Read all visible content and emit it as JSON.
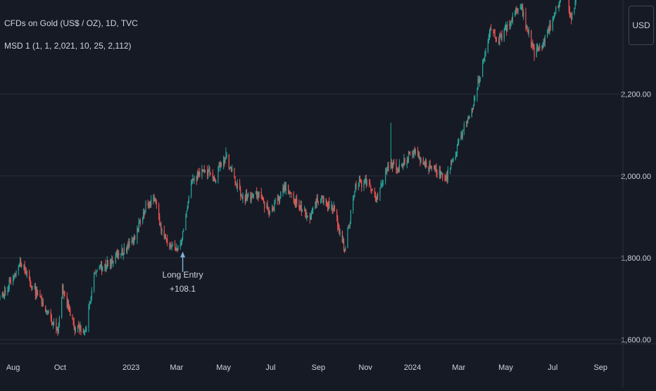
{
  "header": {
    "symbol_title": "CFDs on Gold (US$ / OZ), 1D, TVC",
    "indicator": "MSD 1 (1, 1, 2,021, 10, 25, 2,112)",
    "currency": "USD"
  },
  "colors": {
    "background": "#161a25",
    "grid": "#2a2e39",
    "up": "#26a69a",
    "down": "#ef5350",
    "text": "#d1d4dc",
    "entry_arrow": "#7fb3d5"
  },
  "chart_data": {
    "type": "candlestick",
    "title": "CFDs on Gold (US$ / OZ), 1D, TVC",
    "ylabel": "USD",
    "ylim": [
      1590,
      2430
    ],
    "y_ticks": [
      {
        "value": 1600,
        "label": "1,600.00"
      },
      {
        "value": 1800,
        "label": "1,800.00"
      },
      {
        "value": 2000,
        "label": "2,000.00"
      },
      {
        "value": 2200,
        "label": "2,200.00"
      }
    ],
    "x_range": [
      "2022-07-15",
      "2024-09-30"
    ],
    "x_ticks": [
      {
        "date": "2022-08-01",
        "label": "Aug"
      },
      {
        "date": "2022-10-01",
        "label": "Oct"
      },
      {
        "date": "2023-01-01",
        "label": "2023"
      },
      {
        "date": "2023-03-01",
        "label": "Mar"
      },
      {
        "date": "2023-05-01",
        "label": "May"
      },
      {
        "date": "2023-07-01",
        "label": "Jul"
      },
      {
        "date": "2023-09-01",
        "label": "Sep"
      },
      {
        "date": "2023-11-01",
        "label": "Nov"
      },
      {
        "date": "2024-01-01",
        "label": "2024"
      },
      {
        "date": "2024-03-01",
        "label": "Mar"
      },
      {
        "date": "2024-05-01",
        "label": "May"
      },
      {
        "date": "2024-07-01",
        "label": "Jul"
      },
      {
        "date": "2024-09-01",
        "label": "Sep"
      }
    ],
    "price_path": [
      [
        "2022-07-15",
        1705
      ],
      [
        "2022-07-25",
        1730
      ],
      [
        "2022-08-10",
        1790
      ],
      [
        "2022-08-20",
        1755
      ],
      [
        "2022-09-01",
        1710
      ],
      [
        "2022-09-28",
        1625
      ],
      [
        "2022-10-04",
        1725
      ],
      [
        "2022-10-20",
        1630
      ],
      [
        "2022-11-03",
        1625
      ],
      [
        "2022-11-15",
        1770
      ],
      [
        "2022-12-01",
        1785
      ],
      [
        "2022-12-15",
        1805
      ],
      [
        "2023-01-01",
        1830
      ],
      [
        "2023-01-20",
        1925
      ],
      [
        "2023-02-01",
        1950
      ],
      [
        "2023-02-10",
        1860
      ],
      [
        "2023-02-28",
        1815
      ],
      [
        "2023-03-10",
        1860
      ],
      [
        "2023-03-20",
        1980
      ],
      [
        "2023-04-05",
        2020
      ],
      [
        "2023-04-20",
        1995
      ],
      [
        "2023-05-04",
        2050
      ],
      [
        "2023-05-12",
        2010
      ],
      [
        "2023-05-25",
        1945
      ],
      [
        "2023-06-15",
        1955
      ],
      [
        "2023-06-30",
        1910
      ],
      [
        "2023-07-20",
        1975
      ],
      [
        "2023-08-01",
        1945
      ],
      [
        "2023-08-20",
        1890
      ],
      [
        "2023-09-01",
        1945
      ],
      [
        "2023-09-20",
        1925
      ],
      [
        "2023-10-05",
        1820
      ],
      [
        "2023-10-20",
        1980
      ],
      [
        "2023-11-01",
        1985
      ],
      [
        "2023-11-15",
        1945
      ],
      [
        "2023-12-01",
        2030
      ],
      [
        "2023-12-15",
        2020
      ],
      [
        "2024-01-01",
        2060
      ],
      [
        "2024-01-20",
        2025
      ],
      [
        "2024-02-14",
        1995
      ],
      [
        "2024-03-01",
        2080
      ],
      [
        "2024-03-20",
        2180
      ],
      [
        "2024-04-12",
        2360
      ],
      [
        "2024-04-22",
        2330
      ],
      [
        "2024-05-20",
        2420
      ],
      [
        "2024-06-07",
        2300
      ],
      [
        "2024-06-20",
        2330
      ],
      [
        "2024-07-17",
        2460
      ],
      [
        "2024-07-25",
        2380
      ],
      [
        "2024-08-01",
        2445
      ]
    ],
    "spikes": [
      {
        "date": "2023-05-04",
        "high": 2070
      },
      {
        "date": "2023-12-04",
        "high": 2130
      }
    ],
    "annotations": [
      {
        "date": "2023-03-09",
        "price": 1810,
        "label": "Long Entry",
        "sublabel": "+108.1"
      }
    ]
  }
}
